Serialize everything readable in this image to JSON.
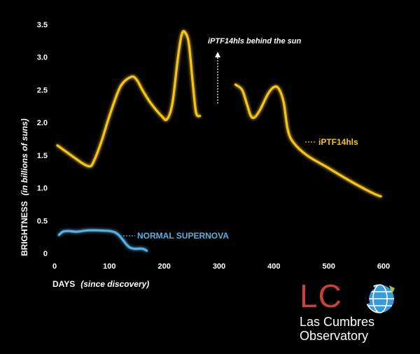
{
  "chart_data": {
    "type": "line",
    "xlabel": "DAYS",
    "xlabel_note": "(since discovery)",
    "ylabel": "BRIGHTNESS",
    "ylabel_note": "(in billions of suns)",
    "xlim": [
      0,
      600
    ],
    "ylim": [
      0,
      3.5
    ],
    "x_ticks": [
      "0",
      "100",
      "200",
      "300",
      "400",
      "500",
      "600"
    ],
    "y_ticks": [
      "0",
      "0.5",
      "1.0",
      "1.5",
      "2.0",
      "2.5",
      "3.0",
      "3.5"
    ],
    "grid": false,
    "annotations": [
      "iPTF14hls behind the sun"
    ],
    "series": [
      {
        "name": "iPTF14hls",
        "color": "#f5c518",
        "segments": [
          {
            "x": [
              5,
              30,
              50,
              63,
              70,
              85,
              100,
              120,
              140,
              150,
              160,
              175,
              195,
              205,
              215,
              225,
              232,
              238,
              245,
              252,
              258,
              265
            ],
            "y": [
              1.65,
              1.5,
              1.38,
              1.33,
              1.38,
              1.7,
              2.1,
              2.55,
              2.7,
              2.65,
              2.5,
              2.3,
              2.1,
              2.05,
              2.3,
              3.0,
              3.35,
              3.38,
              3.2,
              2.6,
              2.15,
              2.1
            ]
          },
          {
            "x": [
              330,
              342,
              350,
              358,
              365,
              375,
              390,
              402,
              410,
              418,
              425,
              435,
              460,
              500,
              540,
              580,
              595
            ],
            "y": [
              2.58,
              2.5,
              2.3,
              2.1,
              2.08,
              2.2,
              2.45,
              2.55,
              2.5,
              2.3,
              1.9,
              1.7,
              1.5,
              1.3,
              1.1,
              0.92,
              0.87
            ]
          }
        ]
      },
      {
        "name": "NORMAL SUPERNOVA",
        "color": "#5aafdf",
        "segments": [
          {
            "x": [
              8,
              15,
              25,
              40,
              60,
              80,
              100,
              110,
              118,
              125,
              135,
              145,
              160,
              168
            ],
            "y": [
              0.28,
              0.33,
              0.34,
              0.33,
              0.35,
              0.35,
              0.34,
              0.32,
              0.27,
              0.2,
              0.1,
              0.07,
              0.07,
              0.04
            ]
          }
        ]
      }
    ]
  },
  "logo": {
    "initials": "LC",
    "line1": "Las Cumbres",
    "line2": "Observatory",
    "red": "#c8413b",
    "blue": "#3a9ad9"
  }
}
